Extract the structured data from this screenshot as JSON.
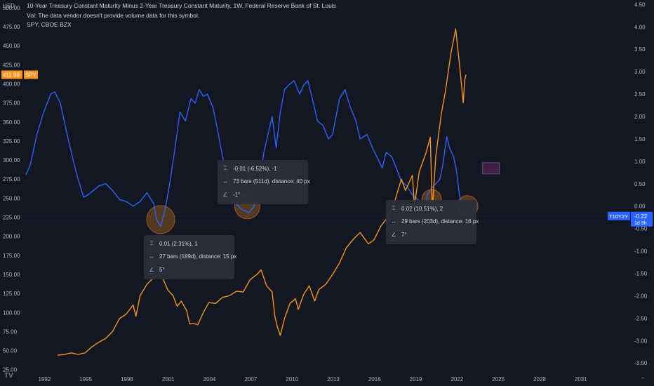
{
  "header": {
    "title": "10-Year Treasury Constant Maturity Minus 2-Year Treasury Constant Maturity, 1W, Federal Reserve Bank of St. Louis",
    "vol_note": "Vol: The data vendor doesn't provide volume data for this symbol.",
    "overlay": "SPY, CBOE BZX"
  },
  "left_axis": {
    "unit": "USD",
    "ticks": [
      "500.00",
      "475.00",
      "450.00",
      "425.00",
      "400.00",
      "375.00",
      "350.00",
      "325.00",
      "300.00",
      "275.00",
      "250.00",
      "225.00",
      "200.00",
      "175.00",
      "150.00",
      "125.00",
      "100.00",
      "75.00",
      "50.00",
      "25.00"
    ],
    "spy_label": {
      "price": "411.99",
      "symbol": "SPY",
      "color": "#f7931a"
    }
  },
  "right_axis": {
    "ticks": [
      "4.50",
      "4.00",
      "3.50",
      "3.00",
      "2.50",
      "2.00",
      "1.50",
      "1.00",
      "0.50",
      "0.00",
      "-0.50",
      "-1.00",
      "-1.50",
      "-2.00",
      "-2.50",
      "-3.00",
      "-3.50"
    ],
    "t10_label": {
      "symbol": "T10Y2Y",
      "value": "-0.22",
      "countdown": "1d 9h",
      "color": "#2962ff"
    }
  },
  "x_axis": {
    "ticks": [
      "1992",
      "1995",
      "1998",
      "2001",
      "2004",
      "2007",
      "2010",
      "2013",
      "2016",
      "2019",
      "2022",
      "2025",
      "2028",
      "2031"
    ]
  },
  "measures": [
    {
      "line1": "-0.01 (-6.52%), -1",
      "line2": "73 bars (511d), distance: 40 px",
      "line3": "-1°"
    },
    {
      "line1": "0.01 (2.31%), 1",
      "line2": "27 bars (189d), distance: 15 px",
      "line3": "5°"
    },
    {
      "line1": "0.02 (10.51%), 2",
      "line2": "29 bars (203d), distance: 16 px",
      "line3": "7°"
    }
  ],
  "icons": {
    "price_range": "price-range-icon",
    "bars_range": "bars-range-icon",
    "angle": "angle-icon",
    "logo": "tradingview-logo-icon"
  },
  "logo_text": "TV",
  "chart_data": {
    "type": "line",
    "title": "10-Year Treasury Constant Maturity Minus 2-Year Treasury Constant Maturity, 1W, Federal Reserve Bank of St. Louis",
    "x_range": [
      1990.5,
      2033.0
    ],
    "y_left_range": [
      22,
      510
    ],
    "y_right_range": [
      -3.7,
      4.6
    ],
    "series": [
      {
        "name": "T10Y2Y",
        "axis": "right",
        "color": "#2962ff",
        "points": [
          [
            1990.7,
            0.7
          ],
          [
            1991.0,
            0.9
          ],
          [
            1991.5,
            1.6
          ],
          [
            1992.0,
            2.1
          ],
          [
            1992.5,
            2.5
          ],
          [
            1992.8,
            2.55
          ],
          [
            1993.2,
            2.3
          ],
          [
            1993.7,
            1.6
          ],
          [
            1994.0,
            1.2
          ],
          [
            1994.4,
            0.7
          ],
          [
            1994.9,
            0.2
          ],
          [
            1995.2,
            0.25
          ],
          [
            1995.6,
            0.35
          ],
          [
            1996.0,
            0.45
          ],
          [
            1996.5,
            0.5
          ],
          [
            1997.0,
            0.35
          ],
          [
            1997.5,
            0.15
          ],
          [
            1998.0,
            0.1
          ],
          [
            1998.5,
            0.0
          ],
          [
            1999.0,
            0.1
          ],
          [
            1999.5,
            0.3
          ],
          [
            2000.0,
            0.05
          ],
          [
            2000.2,
            -0.3
          ],
          [
            2000.5,
            -0.45
          ],
          [
            2000.8,
            -0.1
          ],
          [
            2001.1,
            0.4
          ],
          [
            2001.5,
            1.2
          ],
          [
            2001.9,
            2.1
          ],
          [
            2002.3,
            1.9
          ],
          [
            2002.7,
            2.4
          ],
          [
            2003.0,
            2.3
          ],
          [
            2003.3,
            2.6
          ],
          [
            2003.6,
            2.45
          ],
          [
            2003.9,
            2.5
          ],
          [
            2004.3,
            2.2
          ],
          [
            2004.7,
            1.6
          ],
          [
            2005.0,
            1.1
          ],
          [
            2005.4,
            0.6
          ],
          [
            2005.8,
            0.2
          ],
          [
            2006.0,
            0.05
          ],
          [
            2006.3,
            -0.05
          ],
          [
            2006.6,
            -0.1
          ],
          [
            2006.9,
            -0.15
          ],
          [
            2007.3,
            0.0
          ],
          [
            2007.6,
            0.4
          ],
          [
            2008.0,
            1.2
          ],
          [
            2008.3,
            1.6
          ],
          [
            2008.6,
            2.0
          ],
          [
            2008.9,
            1.3
          ],
          [
            2009.2,
            2.1
          ],
          [
            2009.5,
            2.6
          ],
          [
            2009.8,
            2.7
          ],
          [
            2010.2,
            2.8
          ],
          [
            2010.6,
            2.5
          ],
          [
            2010.9,
            2.7
          ],
          [
            2011.2,
            2.8
          ],
          [
            2011.6,
            2.3
          ],
          [
            2011.9,
            1.9
          ],
          [
            2012.3,
            1.8
          ],
          [
            2012.7,
            1.5
          ],
          [
            2013.0,
            1.6
          ],
          [
            2013.5,
            2.4
          ],
          [
            2013.9,
            2.6
          ],
          [
            2014.3,
            2.2
          ],
          [
            2014.7,
            1.9
          ],
          [
            2015.0,
            1.5
          ],
          [
            2015.5,
            1.6
          ],
          [
            2015.9,
            1.3
          ],
          [
            2016.3,
            1.05
          ],
          [
            2016.6,
            0.85
          ],
          [
            2016.9,
            1.2
          ],
          [
            2017.3,
            1.1
          ],
          [
            2017.7,
            0.8
          ],
          [
            2018.0,
            0.55
          ],
          [
            2018.4,
            0.45
          ],
          [
            2018.8,
            0.25
          ],
          [
            2019.2,
            0.15
          ],
          [
            2019.5,
            0.0
          ],
          [
            2019.7,
            -0.05
          ],
          [
            2019.9,
            0.25
          ],
          [
            2020.2,
            0.4
          ],
          [
            2020.5,
            0.5
          ],
          [
            2020.8,
            0.6
          ],
          [
            2021.0,
            0.9
          ],
          [
            2021.3,
            1.55
          ],
          [
            2021.5,
            1.3
          ],
          [
            2021.8,
            1.1
          ],
          [
            2022.0,
            0.8
          ],
          [
            2022.2,
            0.3
          ],
          [
            2022.35,
            0.05
          ],
          [
            2022.5,
            -0.15
          ],
          [
            2022.7,
            -0.22
          ]
        ]
      },
      {
        "name": "SPY",
        "axis": "left",
        "color": "#f7931a",
        "points": [
          [
            1993.0,
            44
          ],
          [
            1993.5,
            45
          ],
          [
            1994.0,
            47
          ],
          [
            1994.5,
            45
          ],
          [
            1995.0,
            47
          ],
          [
            1995.5,
            55
          ],
          [
            1996.0,
            61
          ],
          [
            1996.5,
            66
          ],
          [
            1997.0,
            75
          ],
          [
            1997.5,
            92
          ],
          [
            1998.0,
            98
          ],
          [
            1998.5,
            110
          ],
          [
            1998.7,
            95
          ],
          [
            1999.0,
            122
          ],
          [
            1999.5,
            137
          ],
          [
            2000.0,
            146
          ],
          [
            2000.3,
            150
          ],
          [
            2000.7,
            143
          ],
          [
            2001.0,
            130
          ],
          [
            2001.4,
            122
          ],
          [
            2001.7,
            108
          ],
          [
            2002.0,
            115
          ],
          [
            2002.4,
            102
          ],
          [
            2002.6,
            85
          ],
          [
            2002.8,
            86
          ],
          [
            2003.2,
            84
          ],
          [
            2003.6,
            100
          ],
          [
            2004.0,
            113
          ],
          [
            2004.5,
            112
          ],
          [
            2005.0,
            120
          ],
          [
            2005.5,
            122
          ],
          [
            2006.0,
            128
          ],
          [
            2006.5,
            127
          ],
          [
            2007.0,
            143
          ],
          [
            2007.5,
            150
          ],
          [
            2007.8,
            156
          ],
          [
            2008.2,
            135
          ],
          [
            2008.6,
            127
          ],
          [
            2008.8,
            95
          ],
          [
            2009.0,
            80
          ],
          [
            2009.2,
            70
          ],
          [
            2009.5,
            92
          ],
          [
            2009.9,
            112
          ],
          [
            2010.3,
            118
          ],
          [
            2010.5,
            104
          ],
          [
            2010.9,
            124
          ],
          [
            2011.3,
            135
          ],
          [
            2011.7,
            115
          ],
          [
            2012.0,
            130
          ],
          [
            2012.5,
            137
          ],
          [
            2013.0,
            150
          ],
          [
            2013.5,
            165
          ],
          [
            2014.0,
            185
          ],
          [
            2014.5,
            196
          ],
          [
            2015.0,
            205
          ],
          [
            2015.6,
            190
          ],
          [
            2016.0,
            195
          ],
          [
            2016.5,
            213
          ],
          [
            2017.0,
            225
          ],
          [
            2017.5,
            245
          ],
          [
            2018.0,
            275
          ],
          [
            2018.3,
            260
          ],
          [
            2018.8,
            280
          ],
          [
            2018.95,
            240
          ],
          [
            2019.3,
            285
          ],
          [
            2019.8,
            310
          ],
          [
            2020.1,
            330
          ],
          [
            2020.25,
            235
          ],
          [
            2020.5,
            305
          ],
          [
            2020.9,
            360
          ],
          [
            2021.2,
            390
          ],
          [
            2021.6,
            440
          ],
          [
            2021.95,
            472
          ],
          [
            2022.2,
            430
          ],
          [
            2022.5,
            375
          ],
          [
            2022.6,
            405
          ],
          [
            2022.7,
            412
          ]
        ]
      }
    ]
  }
}
